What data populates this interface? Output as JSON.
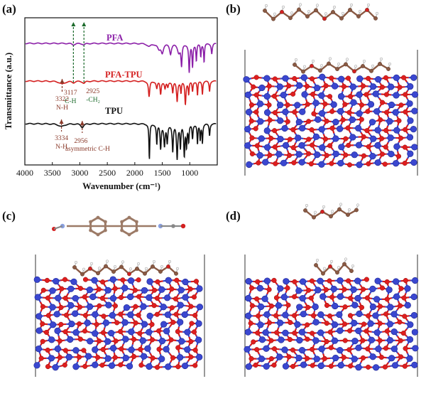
{
  "panels": {
    "a": {
      "label": "(a)"
    },
    "b": {
      "label": "(b)"
    },
    "c": {
      "label": "(c)"
    },
    "d": {
      "label": "(d)"
    }
  },
  "chart_data": {
    "type": "line",
    "xlabel": "Wavenumber (cm⁻¹)",
    "ylabel": "Transmittance (a.u.)",
    "xlim": [
      4000,
      500
    ],
    "x_reversed": true,
    "x_ticks": [
      "4000",
      "3500",
      "3000",
      "2500",
      "2000",
      "1500",
      "1000"
    ],
    "x_tick_values": [
      4000,
      3500,
      3000,
      2500,
      2000,
      1500,
      1000
    ],
    "series": [
      {
        "name": "PFA",
        "color": "#8b1fa8"
      },
      {
        "name": "PFA-TPU",
        "color": "#d42020"
      },
      {
        "name": "TPU",
        "color": "#111111"
      }
    ],
    "annotations": [
      {
        "text_top": "3117",
        "text_bottom": "C-H",
        "x": 3117,
        "color": "#1c6b2c"
      },
      {
        "text_top": "2925",
        "text_bottom": "-CH₂",
        "x": 2925,
        "color": "#1c6b2c"
      },
      {
        "text_top": "3322",
        "text_bottom": "N-H",
        "x": 3322,
        "color": "#8a3a2a"
      },
      {
        "text_top": "3334",
        "text_bottom": "N-H",
        "x": 3334,
        "color": "#8a3a2a"
      },
      {
        "text_top": "2956",
        "text_bottom": "asymmetric C-H",
        "x": 2956,
        "color": "#8a3a2a"
      }
    ]
  }
}
